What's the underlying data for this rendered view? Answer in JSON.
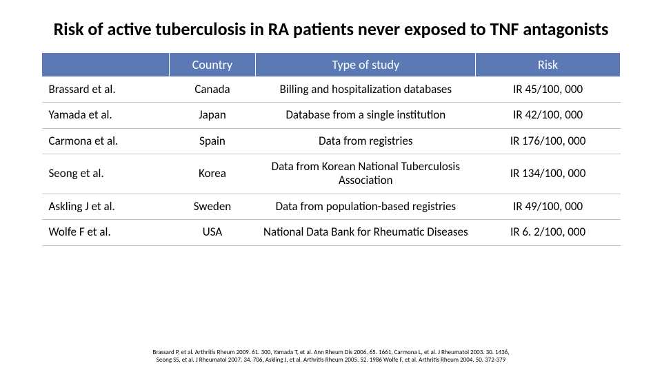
{
  "title": "Risk of active tuberculosis in RA patients never exposed to TNF antagonists",
  "table": {
    "headers": {
      "author": "",
      "country": "Country",
      "study": "Type of study",
      "risk": "Risk"
    },
    "rows": [
      {
        "author": "Brassard et al.",
        "country": "Canada",
        "study": "Billing and hospitalization databases",
        "risk": "IR 45/100, 000"
      },
      {
        "author": "Yamada et al.",
        "country": "Japan",
        "study": "Database from a single institution",
        "risk": "IR 42/100, 000"
      },
      {
        "author": "Carmona et al.",
        "country": "Spain",
        "study": "Data from registries",
        "risk": "IR  176/100, 000"
      },
      {
        "author": "Seong et al.",
        "country": "Korea",
        "study": "Data from Korean National Tuberculosis Association",
        "risk": "IR  134/100, 000"
      },
      {
        "author": "Askling  J et al.",
        "country": "Sweden",
        "study": "Data from population-based registries",
        "risk": "IR  49/100, 000"
      },
      {
        "author": "Wolfe F et al.",
        "country": "USA",
        "study": "National Data Bank for Rheumatic Diseases",
        "risk": "IR  6. 2/100, 000"
      }
    ],
    "header_bg": "#5b7ab5",
    "header_fg": "#ffffff",
    "row_border": "#b9c3d6",
    "font_header": 18,
    "font_cell": 17
  },
  "citation_line1": "Brassard P, et al. Arthritis Rheum 2009. 61. 300, Yamada T, et al. Ann Rheum Dis 2006. 65. 1661, Carmona L, et al. J Rheumatol 2003. 30. 1436,",
  "citation_line2": "Seong SS, et al. J Rheumatol 2007. 34. 706, Askling J, et al. Arthritis Rheum 2005. 52. 1986 Wolfe F, et al. Arthritis Rheum 2004. 50. 372-379"
}
